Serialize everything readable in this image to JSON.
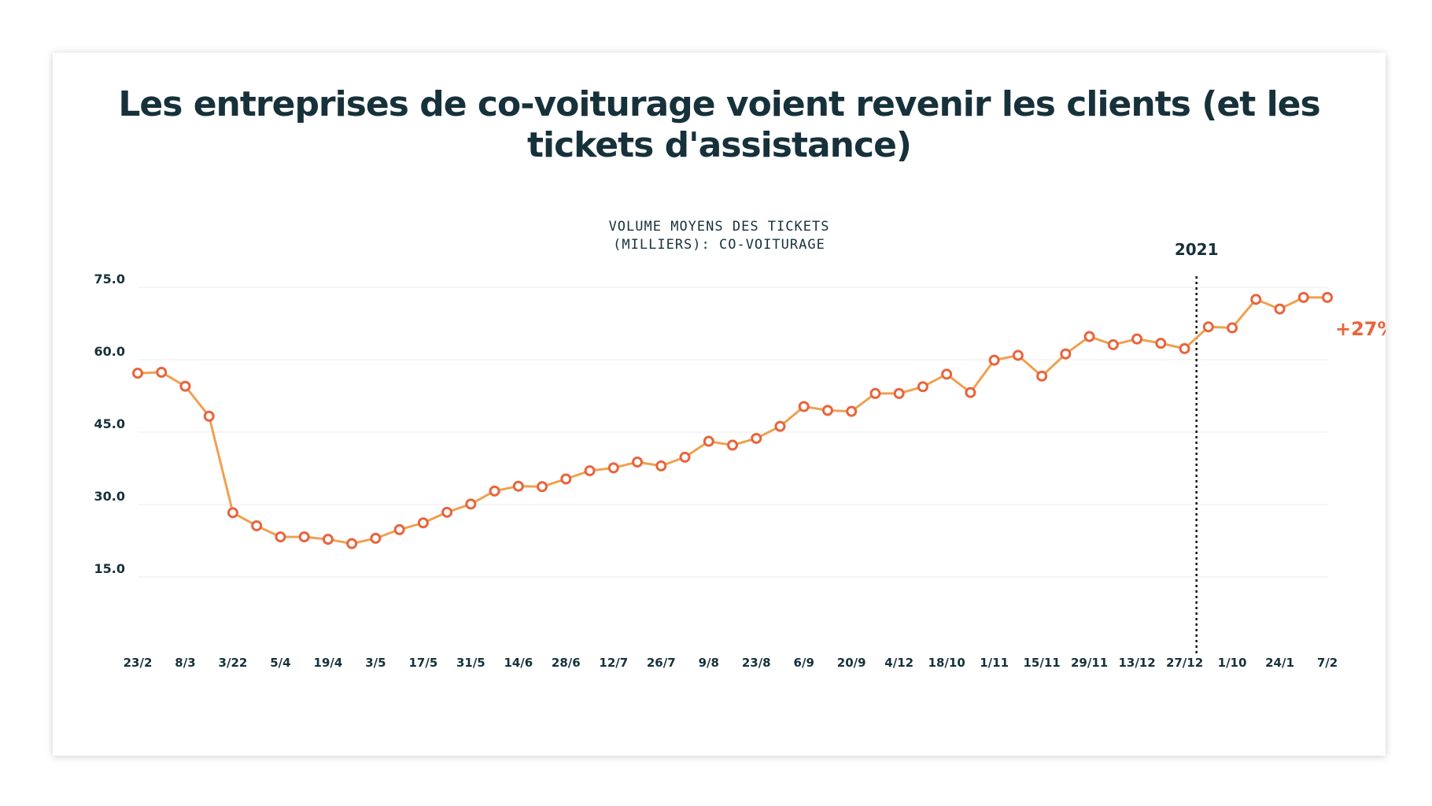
{
  "chart_data": {
    "type": "line",
    "title": "Les entreprises de co-voiturage voient revenir les clients (et les tickets d'assistance)",
    "subtitle_lines": [
      "VOLUME MOYENS DES TICKETS",
      "(MILLIERS): CO-VOITURAGE"
    ],
    "xlabel": "",
    "ylabel": "",
    "ylim": [
      0,
      75
    ],
    "yticks": [
      15,
      30,
      45,
      60,
      75
    ],
    "ytick_labels": [
      "15.0",
      "30.0",
      "45.0",
      "60.0",
      "75.0"
    ],
    "xtick_labels": [
      "23/2",
      "8/3",
      "3/22",
      "5/4",
      "19/4",
      "3/5",
      "17/5",
      "31/5",
      "14/6",
      "28/6",
      "12/7",
      "26/7",
      "9/8",
      "23/8",
      "6/9",
      "20/9",
      "4/12",
      "18/10",
      "1/11",
      "15/11",
      "29/11",
      "13/12",
      "27/12",
      "1/10",
      "24/1",
      "7/2"
    ],
    "grid": true,
    "series": [
      {
        "name": "Co-voiturage",
        "values": [
          57.2,
          57.4,
          54.5,
          48.3,
          28.3,
          25.6,
          23.3,
          23.3,
          22.8,
          21.9,
          23.0,
          24.8,
          26.2,
          28.4,
          30.1,
          32.8,
          33.8,
          33.7,
          35.3,
          37.0,
          37.6,
          38.8,
          38.0,
          39.8,
          43.1,
          42.3,
          43.7,
          46.2,
          50.3,
          49.5,
          49.3,
          53.0,
          53.0,
          54.4,
          57.0,
          53.2,
          59.9,
          60.9,
          56.6,
          61.2,
          64.8,
          63.1,
          64.3,
          63.4,
          62.3,
          66.8,
          66.6,
          72.5,
          70.5,
          72.9,
          72.9
        ]
      }
    ],
    "annotation": {
      "marker_label": "2021",
      "marker_after_index": 44,
      "change_label": "+27%"
    },
    "colors": {
      "line": "#f0a050",
      "marker": "#e8643c",
      "text": "#17313b",
      "grid": "#ececec"
    }
  }
}
